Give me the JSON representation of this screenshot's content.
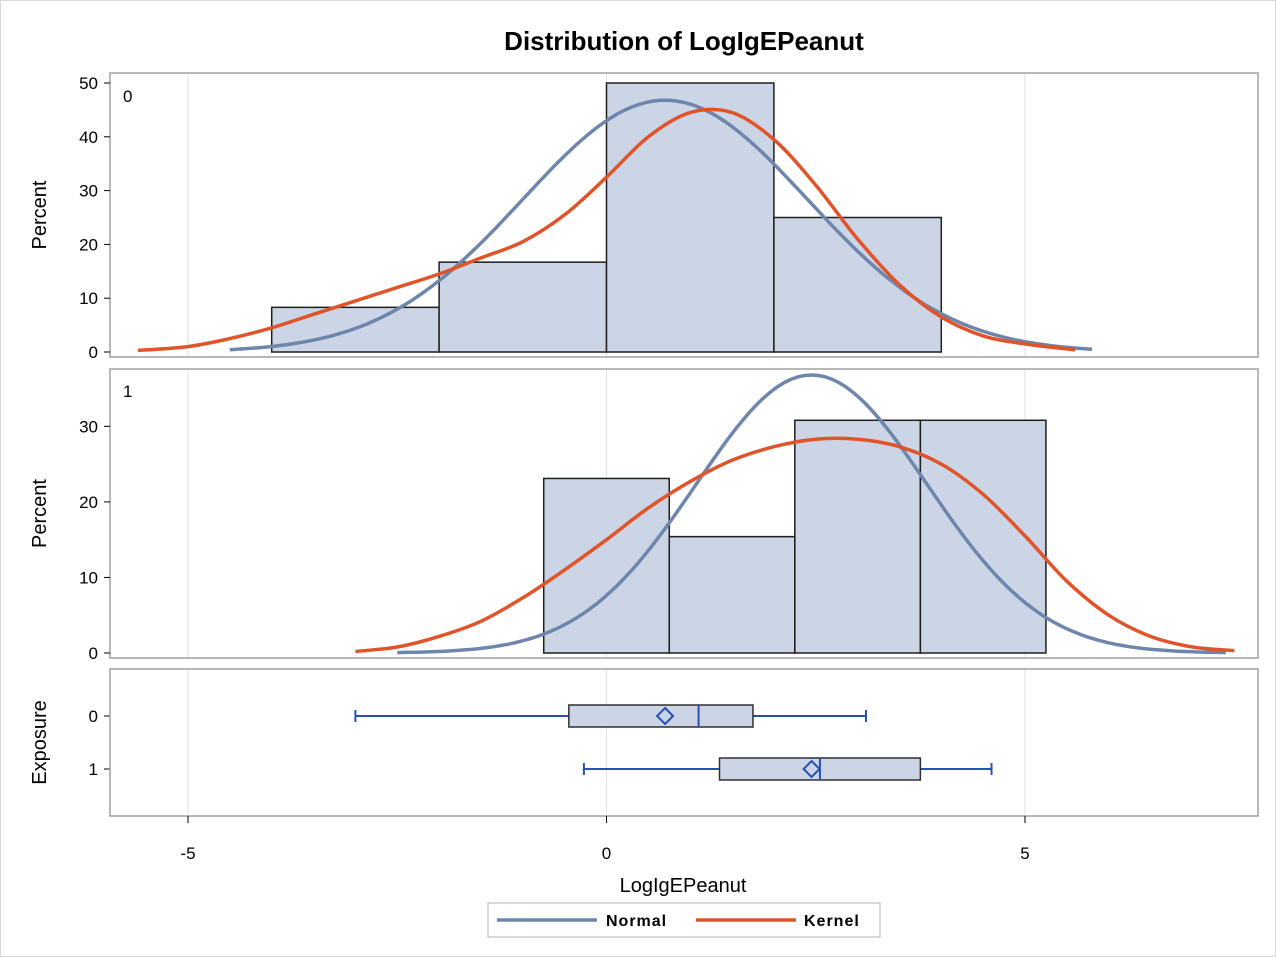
{
  "colors": {
    "bar_fill": "#cbd5e6",
    "bar_stroke": "#1e1e1e",
    "normal": "#6f86ac",
    "kernel": "#e1542a",
    "box_stroke": "#2850b4",
    "grid": "#e2e2e2",
    "panel_border": "#a0a0a0"
  },
  "chart_data": {
    "type": "bar",
    "title": "Distribution of LogIgEPeanut",
    "xlabel": "LogIgEPeanut",
    "xlim": [
      -5,
      5
    ],
    "xticks": [
      "-5",
      "0",
      "5"
    ],
    "legend": {
      "position": "bottom-center",
      "entries": [
        {
          "name": "Normal",
          "color": "#6f86ac"
        },
        {
          "name": "Kernel",
          "color": "#e1542a"
        }
      ]
    },
    "panels": [
      {
        "label": "0",
        "ylabel": "Percent",
        "ylim": [
          0,
          50
        ],
        "yticks": [
          "0",
          "10",
          "20",
          "30",
          "40",
          "50"
        ],
        "bins": [
          {
            "from": -4,
            "to": -2,
            "value": 8.3
          },
          {
            "from": -2,
            "to": 0,
            "value": 16.7
          },
          {
            "from": 0,
            "to": 2,
            "value": 50
          },
          {
            "from": 2,
            "to": 4,
            "value": 25
          }
        ],
        "normal": {
          "mean": 0.7,
          "peak": 46.8
        },
        "kernel_x": [
          -5.6,
          -5,
          -4.5,
          -4,
          -3.5,
          -3,
          -2.5,
          -2,
          -1.5,
          -1,
          -0.5,
          0,
          0.5,
          1,
          1.5,
          2,
          2.5,
          3,
          3.5,
          4,
          4.5,
          5,
          5.6
        ],
        "kernel_y": [
          0.3,
          1,
          2.5,
          4.5,
          7,
          9.5,
          12,
          14.5,
          17.5,
          20.5,
          25.5,
          32.5,
          40,
          44.5,
          44.5,
          39.5,
          31,
          21,
          12.5,
          6.5,
          3,
          1.5,
          0.4
        ]
      },
      {
        "label": "1",
        "ylabel": "Percent",
        "ylim": [
          0,
          36
        ],
        "yticks": [
          "0",
          "10",
          "20",
          "30"
        ],
        "bins": [
          {
            "from": -0.75,
            "to": 0.75,
            "value": 23.1
          },
          {
            "from": 0.75,
            "to": 2.25,
            "value": 15.4
          },
          {
            "from": 2.25,
            "to": 3.75,
            "value": 30.8
          },
          {
            "from": 3.75,
            "to": 5.25,
            "value": 30.8
          }
        ],
        "normal": {
          "mean": 2.45,
          "peak": 36.8
        },
        "kernel_x": [
          -3,
          -2.5,
          -2,
          -1.5,
          -1,
          -0.5,
          0,
          0.5,
          1,
          1.5,
          2,
          2.5,
          3,
          3.5,
          4,
          4.5,
          5,
          5.5,
          6,
          6.5,
          7,
          7.5
        ],
        "kernel_y": [
          0.2,
          0.8,
          2.2,
          4.2,
          7.3,
          11,
          15,
          19.2,
          22.7,
          25.5,
          27.3,
          28.3,
          28.3,
          27.3,
          25,
          21,
          15.5,
          9.5,
          5,
          2.2,
          0.8,
          0.3
        ]
      }
    ],
    "boxplot": {
      "ylabel": "Exposure",
      "groups": [
        {
          "label": "0",
          "min": -3,
          "q1": -0.45,
          "median": 1.1,
          "mean": 0.7,
          "q3": 1.75,
          "max": 3.1
        },
        {
          "label": "1",
          "min": -0.27,
          "q1": 1.35,
          "median": 2.55,
          "mean": 2.45,
          "q3": 3.75,
          "max": 4.6
        }
      ]
    }
  }
}
